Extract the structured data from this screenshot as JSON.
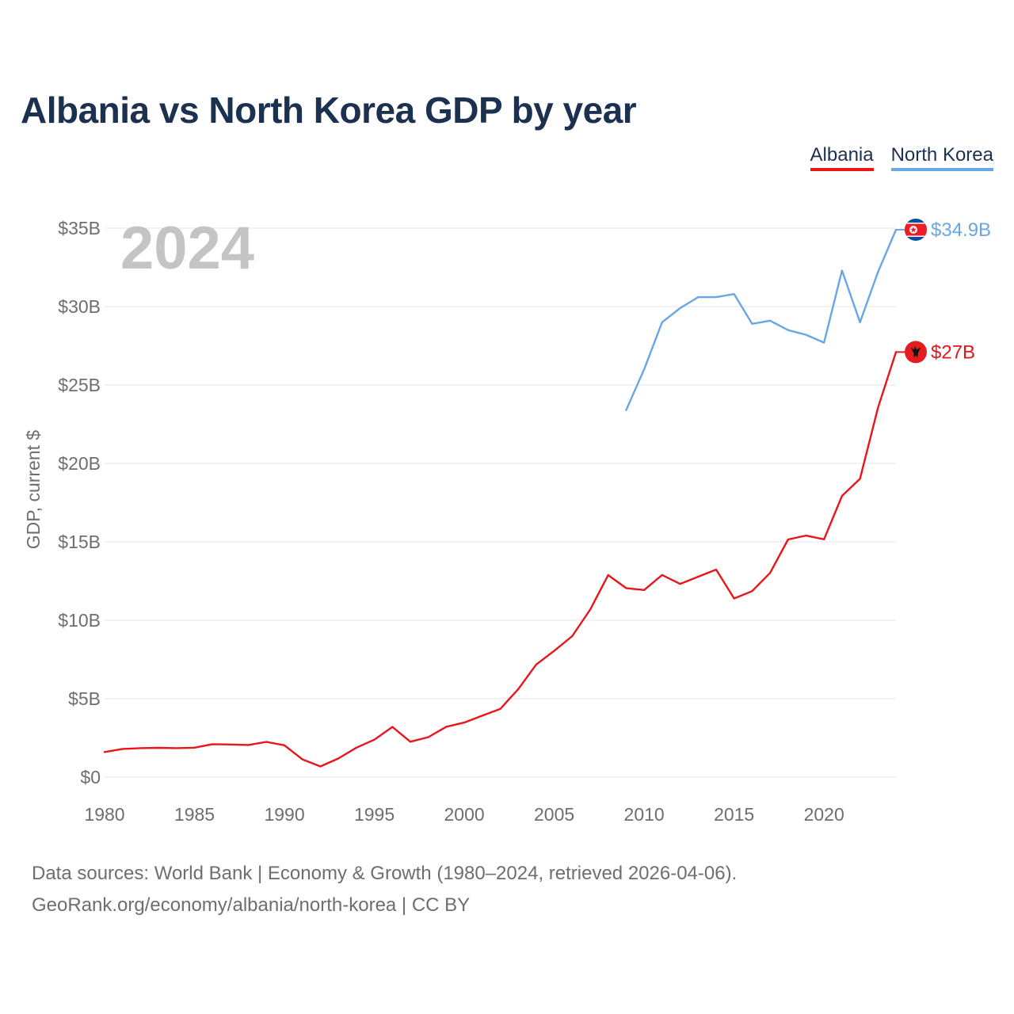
{
  "chart_data": {
    "type": "line",
    "title": "Albania vs North Korea GDP by year",
    "ylabel": "GDP, current $",
    "xlabel": "",
    "xlim": [
      1980,
      2024
    ],
    "ylim": [
      0,
      35
    ],
    "y_unit": "billion USD",
    "year_label": "2024",
    "x_ticks": [
      1980,
      1985,
      1990,
      1995,
      2000,
      2005,
      2010,
      2015,
      2020
    ],
    "x_tick_labels": [
      "1980",
      "1985",
      "1990",
      "1995",
      "2000",
      "2005",
      "2010",
      "2015",
      "2020"
    ],
    "y_ticks": [
      0,
      5,
      10,
      15,
      20,
      25,
      30,
      35
    ],
    "y_tick_labels": [
      "$0",
      "$5B",
      "$10B",
      "$15B",
      "$20B",
      "$25B",
      "$30B",
      "$35B"
    ],
    "legend_position": "top-right",
    "series": [
      {
        "name": "Albania",
        "color": "#e8151b",
        "end_label": "$27B",
        "flag_icon": "albania-flag-icon",
        "x": [
          1980,
          1981,
          1982,
          1983,
          1984,
          1985,
          1986,
          1987,
          1988,
          1989,
          1990,
          1991,
          1992,
          1993,
          1994,
          1995,
          1996,
          1997,
          1998,
          1999,
          2000,
          2001,
          2002,
          2003,
          2004,
          2005,
          2006,
          2007,
          2008,
          2009,
          2010,
          2011,
          2012,
          2013,
          2014,
          2015,
          2016,
          2017,
          2018,
          2019,
          2020,
          2021,
          2022,
          2023,
          2024
        ],
        "values": [
          1.6,
          1.8,
          1.85,
          1.87,
          1.85,
          1.88,
          2.1,
          2.08,
          2.05,
          2.25,
          2.03,
          1.13,
          0.68,
          1.19,
          1.88,
          2.39,
          3.2,
          2.26,
          2.55,
          3.21,
          3.48,
          3.92,
          4.35,
          5.61,
          7.18,
          8.05,
          8.99,
          10.68,
          12.88,
          12.05,
          11.93,
          12.89,
          12.32,
          12.78,
          13.23,
          11.39,
          11.86,
          13.02,
          15.15,
          15.4,
          15.16,
          17.93,
          19.02,
          23.55,
          27.1
        ]
      },
      {
        "name": "North Korea",
        "color": "#69a6e3",
        "end_label": "$34.9B",
        "flag_icon": "north-korea-flag-icon",
        "x": [
          2009,
          2010,
          2011,
          2012,
          2013,
          2014,
          2015,
          2016,
          2017,
          2018,
          2019,
          2020,
          2021,
          2022,
          2023,
          2024
        ],
        "values": [
          23.4,
          26.0,
          29.0,
          29.9,
          30.6,
          30.6,
          30.8,
          28.9,
          29.1,
          28.5,
          28.2,
          27.7,
          32.3,
          29.0,
          32.2,
          34.9
        ]
      }
    ]
  },
  "footer": {
    "line1": "Data sources: World Bank | Economy & Growth (1980–2024, retrieved 2026-04-06).",
    "line2": "GeoRank.org/economy/albania/north-korea | CC BY"
  }
}
